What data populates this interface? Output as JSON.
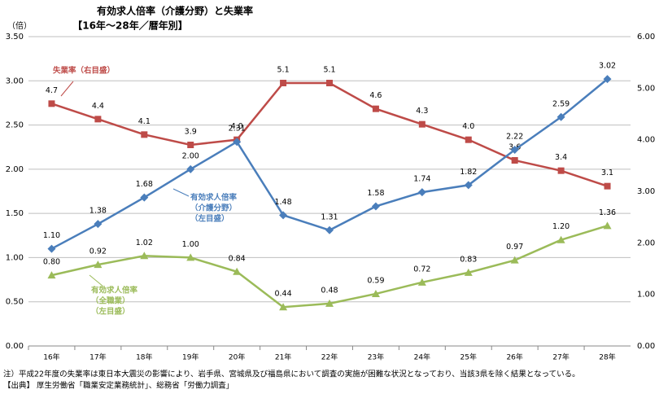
{
  "chart_data": {
    "type": "line",
    "title": "有効求人倍率（介護分野）と失業率",
    "subtitle": "【16年～28年／暦年別】",
    "y_axis_label": "（倍）",
    "categories": [
      "16年",
      "17年",
      "18年",
      "19年",
      "20年",
      "21年",
      "22年",
      "23年",
      "24年",
      "25年",
      "26年",
      "27年",
      "28年"
    ],
    "ylim": [
      0,
      3.5
    ],
    "yticks": [
      {
        "value": 0,
        "label": "0.00"
      },
      {
        "value": 0.5,
        "label": "0.50"
      },
      {
        "value": 1,
        "label": "1.00"
      },
      {
        "value": 1.5,
        "label": "1.50"
      },
      {
        "value": 2,
        "label": "2.00"
      },
      {
        "value": 2.5,
        "label": "2.50"
      },
      {
        "value": 3,
        "label": "3.00"
      },
      {
        "value": 3.5,
        "label": "3.50"
      }
    ],
    "y2lim": [
      0,
      6
    ],
    "y2ticks": [
      {
        "value": 0,
        "label": "0.00"
      },
      {
        "value": 1,
        "label": "1.00"
      },
      {
        "value": 2,
        "label": "2.00"
      },
      {
        "value": 3,
        "label": "3.00"
      },
      {
        "value": 4,
        "label": "4.00"
      },
      {
        "value": 5,
        "label": "5.00"
      },
      {
        "value": 6,
        "label": "6.00"
      }
    ],
    "grid": true,
    "series": [
      {
        "label": [
          "失業率（右目盛）"
        ],
        "color": "#be4b48",
        "marker": "square",
        "axis": "y2",
        "values": [
          4.7,
          4.4,
          4.1,
          3.9,
          4.0,
          5.1,
          5.1,
          4.6,
          4.3,
          4.0,
          3.6,
          3.4,
          3.1
        ],
        "value_labels": [
          "4.7",
          "4.4",
          "4.1",
          "3.9",
          "4.0",
          "5.1",
          "5.1",
          "4.6",
          "4.3",
          "4.0",
          "3.6",
          "3.4",
          "3.1"
        ]
      },
      {
        "label": [
          "有効求人倍率",
          "（介護分野）",
          "（左目盛）"
        ],
        "color": "#4a7ebb",
        "marker": "diamond",
        "values": [
          1.1,
          1.38,
          1.68,
          2.0,
          2.31,
          1.48,
          1.31,
          1.58,
          1.74,
          1.82,
          2.22,
          2.59,
          3.02
        ],
        "value_labels": [
          "1.10",
          "1.38",
          "1.68",
          "2.00",
          "2.31",
          "1.48",
          "1.31",
          "1.58",
          "1.74",
          "1.82",
          "2.22",
          "2.59",
          "3.02"
        ]
      },
      {
        "label": [
          "有効求人倍率",
          "（全職業）",
          "（左目盛）"
        ],
        "color": "#9bbb59",
        "marker": "triangle",
        "values": [
          0.8,
          0.92,
          1.02,
          1.0,
          0.84,
          0.44,
          0.48,
          0.59,
          0.72,
          0.83,
          0.97,
          1.2,
          1.36
        ],
        "value_labels": [
          "0.80",
          "0.92",
          "1.02",
          "1.00",
          "0.84",
          "0.44",
          "0.48",
          "0.59",
          "0.72",
          "0.83",
          "0.97",
          "1.20",
          "1.36"
        ]
      }
    ],
    "notes": [
      "注）平成22年度の失業率は東日本大震災の影響により、岩手県、宮城県及び福島県において調査の実施が困難な状況となっており、当該3県を除く結果となっている。",
      "【出典】 厚生労働省「職業安定業務統計」、総務省「労働力調査」"
    ]
  }
}
